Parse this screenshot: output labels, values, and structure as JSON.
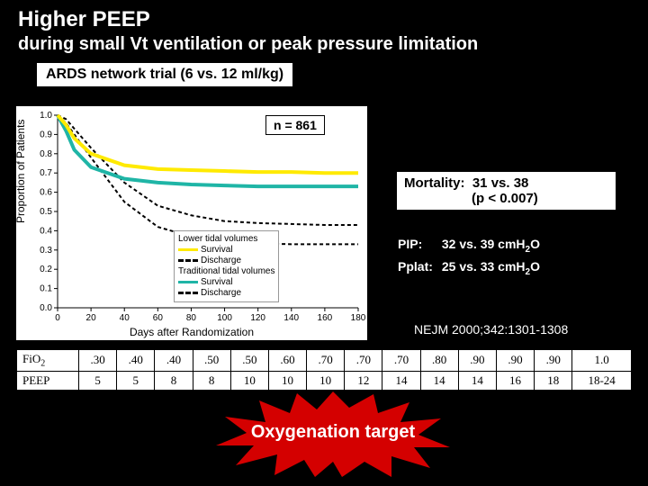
{
  "title_main": "Higher PEEP",
  "title_sub": "during small Vt ventilation or peak pressure limitation",
  "trial_label": "ARDS network trial (6 vs. 12 ml/kg)",
  "n_label": "n = 861",
  "mortality": {
    "label": "Mortality:",
    "value": "31 vs. 38",
    "p": "(p < 0.007)"
  },
  "pip": {
    "label": "PIP:",
    "value": "32 vs. 39 cmH",
    "unit_sub": "2",
    "unit_tail": "O"
  },
  "pplat": {
    "label": "Pplat:",
    "value": "25 vs. 33 cmH",
    "unit_sub": "2",
    "unit_tail": "O"
  },
  "citation": "NEJM 2000;342:1301-1308",
  "starburst_text": "Oxygenation target",
  "chart": {
    "type": "line",
    "x_label": "Days after Randomization",
    "y_label": "Proportion of Patients",
    "xlim": [
      0,
      180
    ],
    "xtick_step": 20,
    "ylim": [
      0.0,
      1.0
    ],
    "ytick_step": 0.1,
    "background_color": "#ffffff",
    "axis_color": "#000000",
    "series": {
      "low_survival": {
        "color": "#ffea00",
        "width": 4,
        "dash": "",
        "label": "Survival",
        "points": [
          [
            0,
            1.0
          ],
          [
            5,
            0.95
          ],
          [
            10,
            0.88
          ],
          [
            20,
            0.8
          ],
          [
            40,
            0.74
          ],
          [
            60,
            0.72
          ],
          [
            80,
            0.715
          ],
          [
            100,
            0.71
          ],
          [
            120,
            0.705
          ],
          [
            140,
            0.705
          ],
          [
            160,
            0.7
          ],
          [
            180,
            0.7
          ]
        ]
      },
      "low_discharge": {
        "color": "#000000",
        "width": 2,
        "dash": "4 3",
        "label": "Discharge",
        "points": [
          [
            0,
            1.0
          ],
          [
            5,
            0.96
          ],
          [
            10,
            0.9
          ],
          [
            20,
            0.78
          ],
          [
            40,
            0.55
          ],
          [
            60,
            0.42
          ],
          [
            80,
            0.37
          ],
          [
            100,
            0.34
          ],
          [
            120,
            0.335
          ],
          [
            140,
            0.33
          ],
          [
            160,
            0.33
          ],
          [
            180,
            0.33
          ]
        ]
      },
      "trad_survival": {
        "color": "#1fb5a6",
        "width": 4,
        "dash": "",
        "label": "Survival",
        "points": [
          [
            0,
            1.0
          ],
          [
            5,
            0.92
          ],
          [
            10,
            0.82
          ],
          [
            20,
            0.73
          ],
          [
            40,
            0.67
          ],
          [
            60,
            0.65
          ],
          [
            80,
            0.64
          ],
          [
            100,
            0.635
          ],
          [
            120,
            0.63
          ],
          [
            140,
            0.63
          ],
          [
            160,
            0.63
          ],
          [
            180,
            0.63
          ]
        ]
      },
      "trad_discharge": {
        "color": "#000000",
        "width": 2,
        "dash": "4 3",
        "label": "Discharge",
        "points": [
          [
            0,
            1.0
          ],
          [
            5,
            0.98
          ],
          [
            10,
            0.93
          ],
          [
            20,
            0.83
          ],
          [
            40,
            0.65
          ],
          [
            60,
            0.53
          ],
          [
            80,
            0.48
          ],
          [
            100,
            0.45
          ],
          [
            120,
            0.44
          ],
          [
            140,
            0.435
          ],
          [
            160,
            0.43
          ],
          [
            180,
            0.43
          ]
        ]
      }
    },
    "legend": {
      "heading_low": "Lower tidal volumes",
      "heading_trad": "Traditional tidal volumes"
    }
  },
  "peep_table": {
    "rows": [
      {
        "header": "FiO₂",
        "cells": [
          ".30",
          ".40",
          ".40",
          ".50",
          ".50",
          ".60",
          ".70",
          ".70",
          ".70",
          ".80",
          ".90",
          ".90",
          ".90",
          "1.0"
        ]
      },
      {
        "header": "PEEP",
        "cells": [
          "5",
          "5",
          "8",
          "8",
          "10",
          "10",
          "10",
          "12",
          "14",
          "14",
          "14",
          "16",
          "18",
          "18-24"
        ]
      }
    ]
  },
  "starburst_fill": "#d40000"
}
